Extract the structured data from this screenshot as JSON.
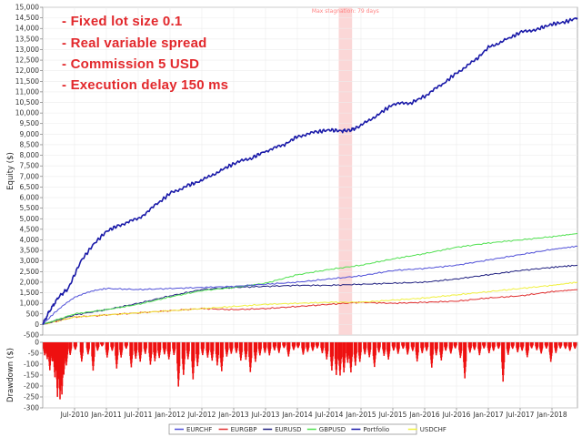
{
  "chart_data": [
    {
      "type": "line",
      "title": "",
      "xlabel": "",
      "ylabel": "Equity ($)",
      "ylim": [
        -500,
        15000
      ],
      "yticks": [
        -500,
        0,
        500,
        1000,
        1500,
        2000,
        2500,
        3000,
        3500,
        4000,
        4500,
        5000,
        5500,
        6000,
        6500,
        7000,
        7500,
        8000,
        8500,
        9000,
        9500,
        10000,
        10500,
        11000,
        11500,
        12000,
        12500,
        13000,
        13500,
        14000,
        14500,
        15000
      ],
      "ytick_labels": [
        "-500",
        "0",
        "500",
        "1,000",
        "1,500",
        "2,000",
        "2,500",
        "3,000",
        "3,500",
        "4,000",
        "4,500",
        "5,000",
        "5,500",
        "6,000",
        "6,500",
        "7,000",
        "7,500",
        "8,000",
        "8,500",
        "9,000",
        "9,500",
        "10,000",
        "10,500",
        "11,000",
        "11,500",
        "12,000",
        "12,500",
        "13,000",
        "13,500",
        "14,000",
        "14,500",
        "15,000"
      ],
      "xlim": [
        2010.0,
        2018.4
      ],
      "xticks": [
        2010.5,
        2011.0,
        2011.5,
        2012.0,
        2012.5,
        2013.0,
        2013.5,
        2014.0,
        2014.5,
        2015.0,
        2015.5,
        2016.0,
        2016.5,
        2017.0,
        2017.5,
        2018.0
      ],
      "xtick_labels": [
        "Jul-2010",
        "Jan-2011",
        "Jul-2011",
        "Jan-2012",
        "Jul-2012",
        "Jan-2013",
        "Jul-2013",
        "Jan-2014",
        "Jul-2014",
        "Jan-2015",
        "Jul-2015",
        "Jan-2016",
        "Jul-2016",
        "Jan-2017",
        "Jul-2017",
        "Jan-2018"
      ],
      "stagnation": {
        "label": "Max stagnation: 79 days",
        "x_start": 2014.65,
        "x_end": 2014.86
      },
      "annotations": [
        "- Fixed lot size 0.1",
        "- Real variable spread",
        "- Commission 5 USD",
        "- Execution delay 150 ms"
      ],
      "series": [
        {
          "name": "EURCHF",
          "color": "#5050d8",
          "x": [
            2010.0,
            2010.2,
            2010.5,
            2010.8,
            2011.0,
            2011.5,
            2012.0,
            2012.5,
            2013.0,
            2013.5,
            2014.0,
            2014.5,
            2015.0,
            2015.5,
            2016.0,
            2016.5,
            2017.0,
            2017.5,
            2018.0,
            2018.4
          ],
          "y": [
            0,
            600,
            1300,
            1600,
            1700,
            1650,
            1700,
            1750,
            1800,
            1900,
            2000,
            2150,
            2300,
            2550,
            2650,
            2800,
            3050,
            3300,
            3550,
            3700
          ]
        },
        {
          "name": "EURGBP",
          "color": "#e03030",
          "x": [
            2010.0,
            2010.5,
            2011.0,
            2011.5,
            2012.0,
            2012.5,
            2013.0,
            2013.5,
            2014.0,
            2014.5,
            2015.0,
            2015.5,
            2016.0,
            2016.5,
            2017.0,
            2017.5,
            2018.0,
            2018.4
          ],
          "y": [
            0,
            350,
            450,
            550,
            650,
            750,
            700,
            750,
            850,
            950,
            1050,
            1000,
            1050,
            1100,
            1250,
            1350,
            1550,
            1650
          ]
        },
        {
          "name": "EURUSD",
          "color": "#202080",
          "x": [
            2010.0,
            2010.5,
            2011.0,
            2011.5,
            2012.0,
            2012.5,
            2013.0,
            2013.5,
            2014.0,
            2014.5,
            2015.0,
            2015.5,
            2016.0,
            2016.5,
            2017.0,
            2017.5,
            2018.0,
            2018.4
          ],
          "y": [
            0,
            450,
            700,
            1000,
            1350,
            1650,
            1750,
            1800,
            1850,
            1850,
            1900,
            1950,
            2000,
            2150,
            2350,
            2550,
            2700,
            2800
          ]
        },
        {
          "name": "GBPUSD",
          "color": "#50e050",
          "x": [
            2010.0,
            2010.5,
            2011.0,
            2011.5,
            2012.0,
            2012.5,
            2013.0,
            2013.5,
            2014.0,
            2014.5,
            2015.0,
            2015.5,
            2016.0,
            2016.5,
            2017.0,
            2017.5,
            2018.0,
            2018.4
          ],
          "y": [
            0,
            500,
            700,
            950,
            1300,
            1600,
            1750,
            1950,
            2350,
            2600,
            2800,
            3100,
            3350,
            3650,
            3850,
            4000,
            4150,
            4300
          ]
        },
        {
          "name": "Portfolio",
          "color": "#1a1aa8",
          "x": [
            2010.0,
            2010.1,
            2010.25,
            2010.4,
            2010.6,
            2010.8,
            2011.0,
            2011.2,
            2011.5,
            2011.8,
            2012.0,
            2012.3,
            2012.5,
            2012.8,
            2013.0,
            2013.3,
            2013.5,
            2013.8,
            2014.0,
            2014.3,
            2014.5,
            2014.7,
            2014.85,
            2015.0,
            2015.3,
            2015.5,
            2015.8,
            2016.0,
            2016.3,
            2016.5,
            2016.8,
            2017.0,
            2017.3,
            2017.5,
            2017.8,
            2018.0,
            2018.2,
            2018.4
          ],
          "y": [
            0,
            600,
            1300,
            1700,
            3000,
            3800,
            4400,
            4700,
            5000,
            5700,
            6200,
            6600,
            6800,
            7300,
            7600,
            7900,
            8200,
            8500,
            8900,
            9100,
            9200,
            9150,
            9200,
            9400,
            10000,
            10400,
            10500,
            10800,
            11400,
            11900,
            12500,
            13100,
            13500,
            13800,
            14000,
            14200,
            14300,
            14500
          ]
        },
        {
          "name": "USDCHF",
          "color": "#f0f040",
          "x": [
            2010.0,
            2010.5,
            2011.0,
            2011.5,
            2012.0,
            2012.5,
            2013.0,
            2013.5,
            2014.0,
            2014.5,
            2015.0,
            2015.5,
            2016.0,
            2016.5,
            2017.0,
            2017.5,
            2018.0,
            2018.4
          ],
          "y": [
            0,
            350,
            450,
            550,
            650,
            750,
            850,
            950,
            1000,
            1050,
            1050,
            1150,
            1250,
            1400,
            1550,
            1700,
            1850,
            2000
          ]
        }
      ]
    },
    {
      "type": "bar",
      "title": "",
      "xlabel": "",
      "ylabel": "Drawdown ($)",
      "ylim": [
        -300,
        0
      ],
      "yticks": [
        -300,
        -250,
        -200,
        -150,
        -100,
        -50,
        0
      ],
      "ytick_labels": [
        "-300",
        "-250",
        "-200",
        "-150",
        "-100",
        "-50",
        "0"
      ],
      "color": "#ee1111",
      "x": [
        2010.02,
        2010.06,
        2010.1,
        2010.14,
        2010.18,
        2010.22,
        2010.26,
        2010.29,
        2010.32,
        2010.36,
        2010.42,
        2010.5,
        2010.6,
        2010.7,
        2010.78,
        2010.85,
        2010.92,
        2011.0,
        2011.08,
        2011.15,
        2011.22,
        2011.3,
        2011.38,
        2011.45,
        2011.52,
        2011.6,
        2011.68,
        2011.75,
        2011.82,
        2011.9,
        2011.97,
        2012.05,
        2012.12,
        2012.2,
        2012.27,
        2012.35,
        2012.42,
        2012.5,
        2012.58,
        2012.65,
        2012.73,
        2012.8,
        2012.88,
        2012.95,
        2013.03,
        2013.1,
        2013.18,
        2013.25,
        2013.33,
        2013.4,
        2013.48,
        2013.55,
        2013.63,
        2013.7,
        2013.78,
        2013.85,
        2013.93,
        2014.0,
        2014.08,
        2014.15,
        2014.23,
        2014.3,
        2014.38,
        2014.45,
        2014.53,
        2014.6,
        2014.66,
        2014.72,
        2014.78,
        2014.83,
        2014.9,
        2014.97,
        2015.05,
        2015.12,
        2015.2,
        2015.27,
        2015.35,
        2015.42,
        2015.5,
        2015.57,
        2015.65,
        2015.72,
        2015.8,
        2015.87,
        2015.95,
        2016.02,
        2016.1,
        2016.17,
        2016.25,
        2016.32,
        2016.4,
        2016.47,
        2016.55,
        2016.62,
        2016.7,
        2016.77,
        2016.85,
        2016.92,
        2017.0,
        2017.07,
        2017.15,
        2017.22,
        2017.3,
        2017.37,
        2017.45,
        2017.52,
        2017.6,
        2017.67,
        2017.75,
        2017.82,
        2017.9,
        2017.97,
        2018.05,
        2018.12,
        2018.2,
        2018.27,
        2018.35
      ],
      "y": [
        -60,
        -90,
        -130,
        -90,
        -180,
        -250,
        -280,
        -240,
        -150,
        -110,
        -60,
        -40,
        -100,
        -60,
        -130,
        -40,
        -20,
        -70,
        -40,
        -120,
        -70,
        -30,
        -130,
        -80,
        -90,
        -60,
        -110,
        -100,
        -80,
        -60,
        -90,
        -60,
        -220,
        -150,
        -80,
        -170,
        -110,
        -60,
        -80,
        -90,
        -120,
        -150,
        -70,
        -60,
        -50,
        -90,
        -80,
        -140,
        -90,
        -60,
        -50,
        -60,
        -40,
        -50,
        -30,
        -70,
        -40,
        -30,
        -60,
        -50,
        -40,
        -30,
        -50,
        -80,
        -130,
        -150,
        -170,
        -140,
        -100,
        -150,
        -110,
        -90,
        -60,
        -70,
        -130,
        -50,
        -70,
        -90,
        -40,
        -60,
        -30,
        -60,
        -40,
        -90,
        -50,
        -40,
        -120,
        -60,
        -90,
        -40,
        -60,
        -30,
        -80,
        -190,
        -50,
        -40,
        -60,
        -30,
        -50,
        -40,
        -30,
        -180,
        -60,
        -30,
        -50,
        -40,
        -80,
        -30,
        -40,
        -60,
        -30,
        -100,
        -50,
        -30,
        -30,
        -40,
        -30
      ]
    }
  ],
  "legend": {
    "items": [
      {
        "label": "EURCHF",
        "color": "#5050d8"
      },
      {
        "label": "EURGBP",
        "color": "#e03030"
      },
      {
        "label": "EURUSD",
        "color": "#202080"
      },
      {
        "label": "GBPUSD",
        "color": "#50e050"
      },
      {
        "label": "Portfolio",
        "color": "#1a1aa8"
      },
      {
        "label": "USDCHF",
        "color": "#f0f040"
      }
    ]
  }
}
